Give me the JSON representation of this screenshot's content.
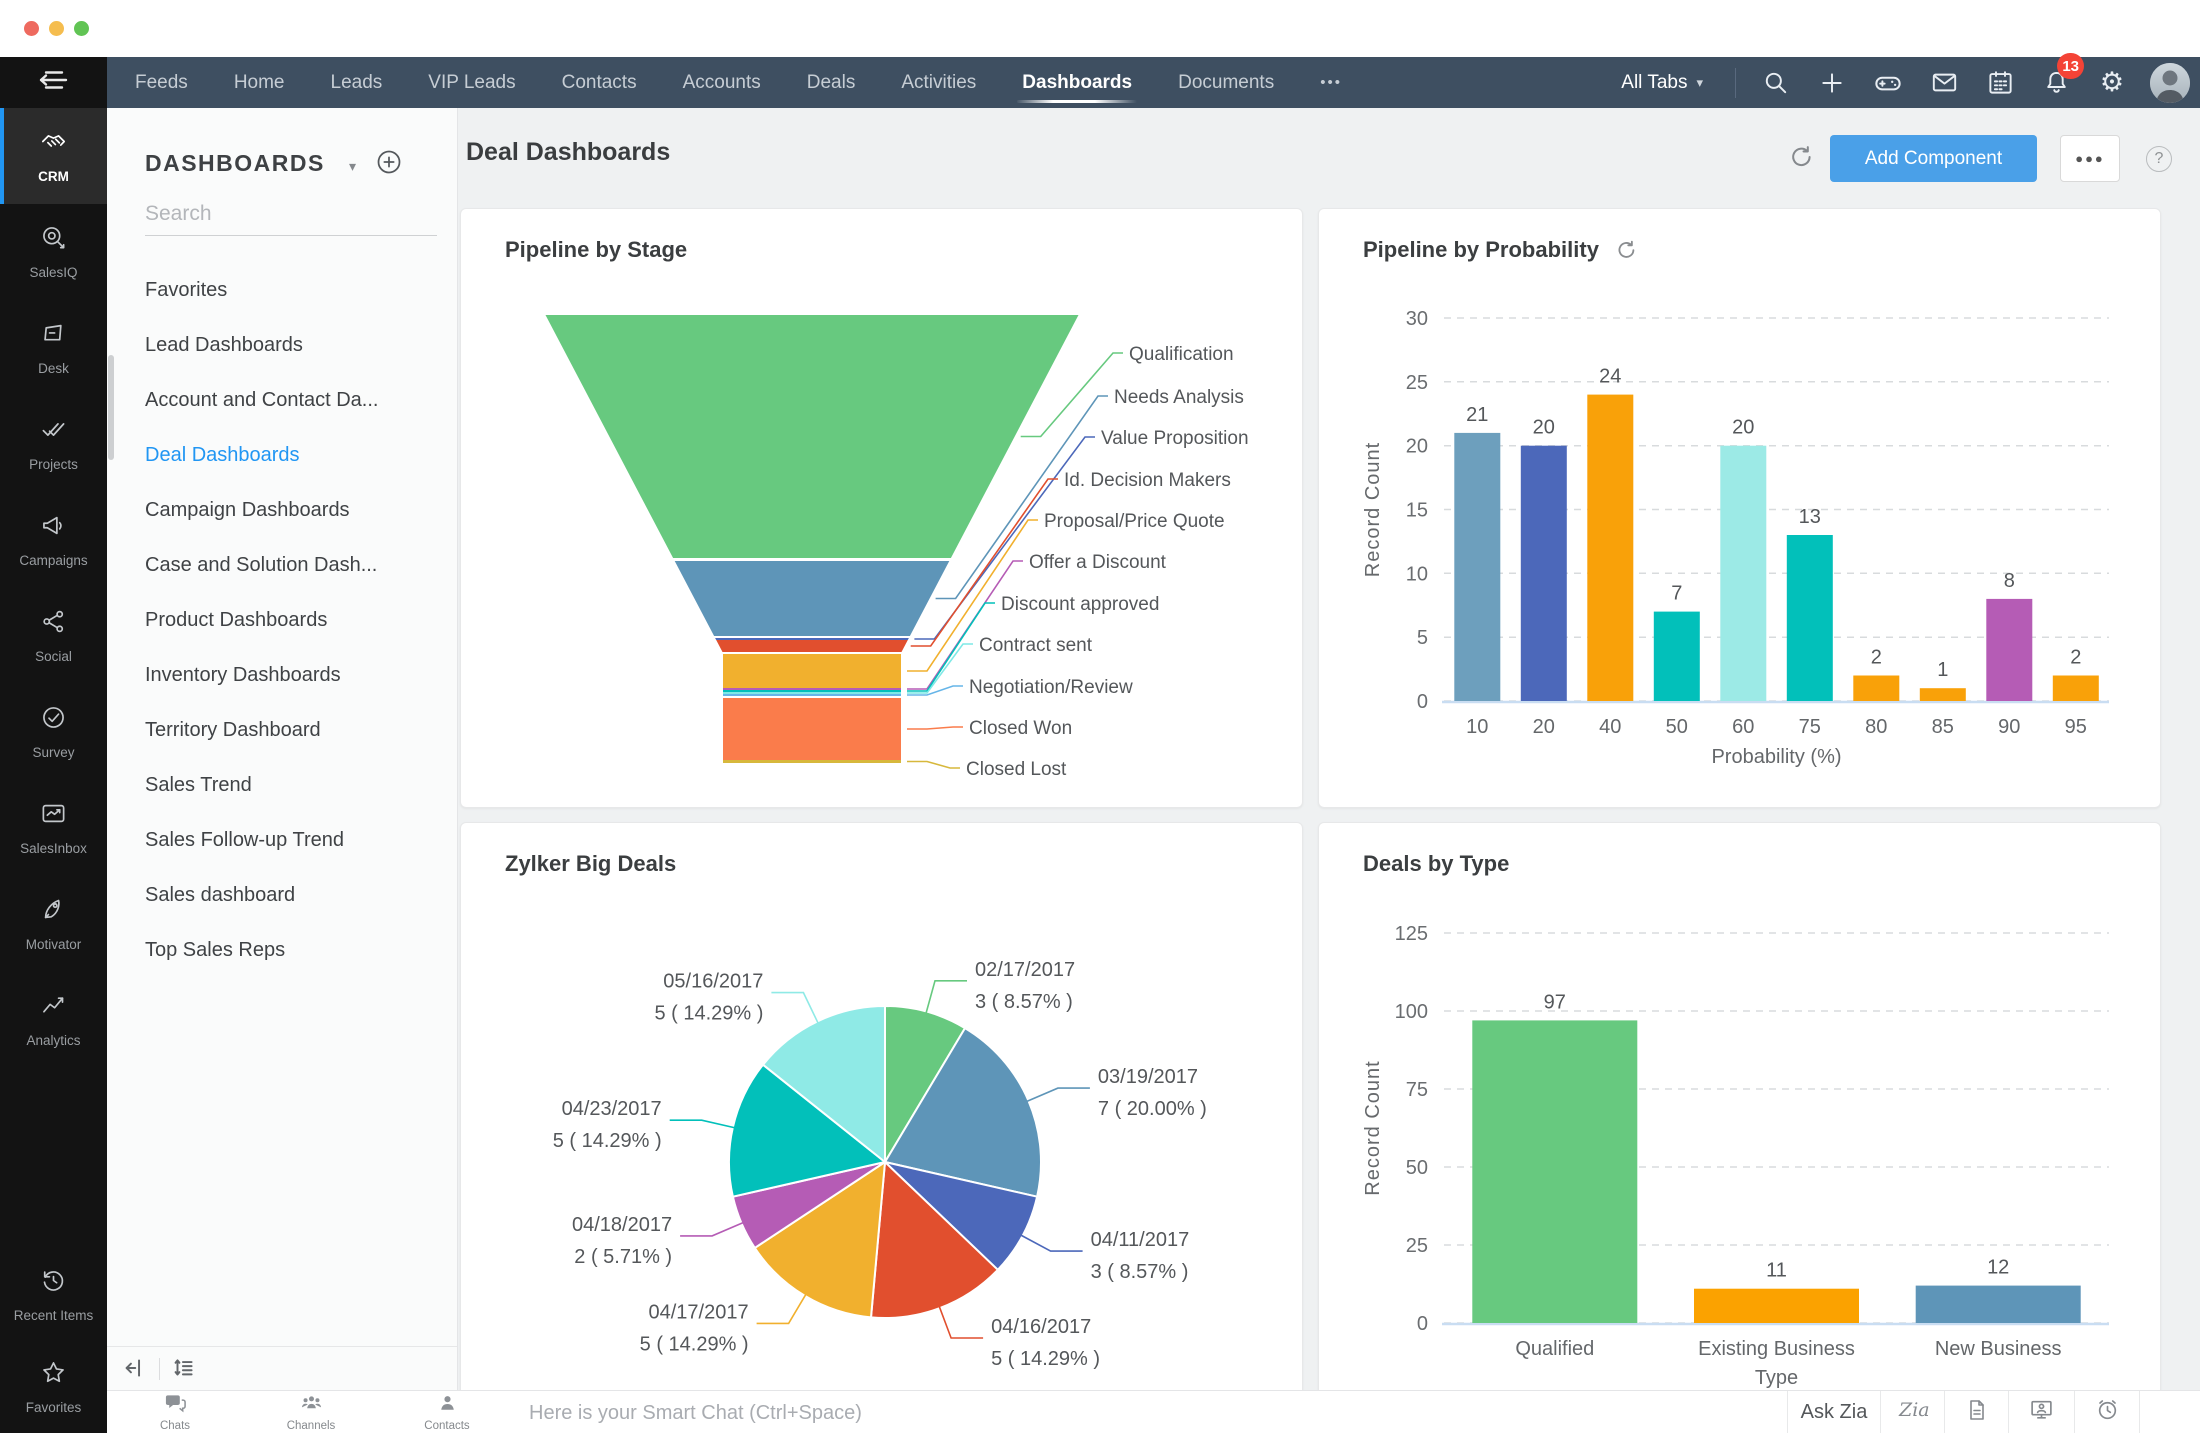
{
  "navbar": {
    "tabs": [
      "Feeds",
      "Home",
      "Leads",
      "VIP Leads",
      "Contacts",
      "Accounts",
      "Deals",
      "Activities",
      "Dashboards",
      "Documents"
    ],
    "active_tab": "Dashboards",
    "more_tabs_label": "•••",
    "all_tabs_label": "All Tabs",
    "notification_count": "13"
  },
  "rail": {
    "items": [
      {
        "label": "CRM",
        "icon": "handshake-icon",
        "active": true
      },
      {
        "label": "SalesIQ",
        "icon": "target-icon",
        "active": false
      },
      {
        "label": "Desk",
        "icon": "notepad-icon",
        "active": false
      },
      {
        "label": "Projects",
        "icon": "double-check-icon",
        "active": false
      },
      {
        "label": "Campaigns",
        "icon": "megaphone-icon",
        "active": false
      },
      {
        "label": "Social",
        "icon": "share-icon",
        "active": false
      },
      {
        "label": "Survey",
        "icon": "check-circle-icon",
        "active": false
      },
      {
        "label": "SalesInbox",
        "icon": "inbox-chart-icon",
        "active": false
      },
      {
        "label": "Motivator",
        "icon": "rocket-icon",
        "active": false
      },
      {
        "label": "Analytics",
        "icon": "line-chart-icon",
        "active": false
      }
    ],
    "footer_items": [
      {
        "label": "Recent Items",
        "icon": "history-icon"
      },
      {
        "label": "Favorites",
        "icon": "star-icon"
      }
    ]
  },
  "panel": {
    "title": "DASHBOARDS",
    "search_placeholder": "Search",
    "items": [
      "Favorites",
      "Lead Dashboards",
      "Account and Contact Da...",
      "Deal Dashboards",
      "Campaign Dashboards",
      "Case and Solution Dash...",
      "Product Dashboards",
      "Inventory Dashboards",
      "Territory Dashboard",
      "Sales Trend",
      "Sales Follow-up Trend",
      "Sales dashboard",
      "Top Sales Reps"
    ],
    "active_item": "Deal Dashboards"
  },
  "page": {
    "title": "Deal Dashboards",
    "add_component_label": "Add Component",
    "help_label": "?",
    "more_label": "●●●"
  },
  "chat_bar": {
    "tools": [
      {
        "label": "Chats",
        "icon": "chat-bubbles-icon"
      },
      {
        "label": "Channels",
        "icon": "people-group-icon"
      },
      {
        "label": "Contacts",
        "icon": "person-icon"
      }
    ],
    "input_placeholder": "Here is your Smart Chat (Ctrl+Space)",
    "ask_zia_label": "Ask Zia",
    "zia_icon_label": "Zia"
  },
  "colors": {
    "navbar_bg": "#3e4f61",
    "accent_blue": "#2196f3",
    "add_component_bg": "#4aa0e8",
    "badge_red": "#f44336",
    "traffic_lights": [
      "#ee6a5f",
      "#f5bd4f",
      "#61c454"
    ]
  },
  "chart_data": [
    {
      "type": "funnel",
      "title": "Pipeline by Stage",
      "stages": [
        {
          "label": "Qualification",
          "color": "#67c97f",
          "size": 243
        },
        {
          "label": "Needs Analysis",
          "color": "#5e95b8",
          "size": 75
        },
        {
          "label": "Value Proposition",
          "color": "#4c68ba",
          "size": 2
        },
        {
          "label": "Id. Decision Makers",
          "color": "#e14f2e",
          "size": 12
        },
        {
          "label": "Proposal/Price Quote",
          "color": "#f1b02e",
          "size": 34
        },
        {
          "label": "Offer a Discount",
          "color": "#b55cb5",
          "size": 2
        },
        {
          "label": "Discount approved",
          "color": "#02c0ba",
          "size": 2
        },
        {
          "label": "Contract sent",
          "color": "#7fe9e6",
          "size": 2
        },
        {
          "label": "Negotiation/Review",
          "color": "#66b5e8",
          "size": 2
        },
        {
          "label": "Closed Won",
          "color": "#fa7c4b",
          "size": 62
        },
        {
          "label": "Closed Lost",
          "color": "#d7b83c",
          "size": 3
        }
      ]
    },
    {
      "type": "bar",
      "title": "Pipeline by Probability",
      "xlabel": "Probability (%)",
      "ylabel": "Record Count",
      "categories": [
        "10",
        "20",
        "40",
        "50",
        "60",
        "75",
        "80",
        "85",
        "90",
        "95"
      ],
      "values": [
        21,
        20,
        24,
        7,
        20,
        13,
        2,
        1,
        8,
        2
      ],
      "colors": [
        "#6d9fbd",
        "#4c68ba",
        "#f9a109",
        "#02c0ba",
        "#9ceae6",
        "#02c0ba",
        "#f9a109",
        "#f9a109",
        "#b55cb5",
        "#f9a109"
      ],
      "yticks": [
        0,
        5,
        10,
        15,
        20,
        25,
        30
      ],
      "ylim": [
        0,
        30
      ],
      "grid": "dashed horizontal"
    },
    {
      "type": "pie",
      "title": "Zylker Big Deals",
      "total": 35,
      "slices": [
        {
          "label": "02/17/2017",
          "value": 3,
          "pct": "8.57%",
          "color": "#67c97f"
        },
        {
          "label": "03/19/2017",
          "value": 7,
          "pct": "20.00%",
          "color": "#5e95b8"
        },
        {
          "label": "04/11/2017",
          "value": 3,
          "pct": "8.57%",
          "color": "#4c68ba"
        },
        {
          "label": "04/16/2017",
          "value": 5,
          "pct": "14.29%",
          "color": "#e14f2e"
        },
        {
          "label": "04/17/2017",
          "value": 5,
          "pct": "14.29%",
          "color": "#f1b02e"
        },
        {
          "label": "04/18/2017",
          "value": 2,
          "pct": "5.71%",
          "color": "#b55cb5"
        },
        {
          "label": "04/23/2017",
          "value": 5,
          "pct": "14.29%",
          "color": "#02c0ba"
        },
        {
          "label": "05/16/2017",
          "value": 5,
          "pct": "14.29%",
          "color": "#8feae6"
        }
      ]
    },
    {
      "type": "bar",
      "title": "Deals by Type",
      "xlabel": "Type",
      "ylabel": "Record Count",
      "categories": [
        "Qualified",
        "Existing Business",
        "New Business"
      ],
      "values": [
        97,
        11,
        12
      ],
      "colors": [
        "#67c97f",
        "#fba200",
        "#5e95b8"
      ],
      "yticks": [
        0,
        25,
        50,
        75,
        100,
        125
      ],
      "ylim": [
        0,
        125
      ],
      "grid": "dashed horizontal"
    }
  ]
}
